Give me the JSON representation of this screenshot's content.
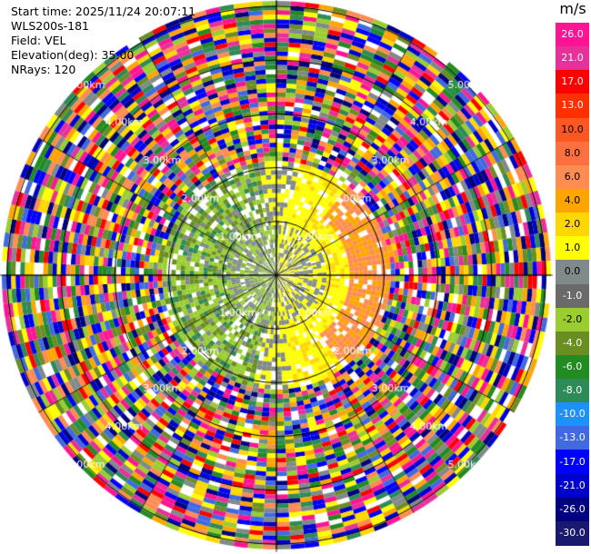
{
  "info": {
    "start_time": "Start time: 2025/11/24 20:07:11",
    "device": "WLS200s-181",
    "field": "Field: VEL",
    "elevation": "Elevation(deg): 35.00",
    "nrays": "NRays: 120"
  },
  "chart_data": {
    "type": "heatmap",
    "projection": "polar-ppi",
    "field": "VEL",
    "elevation_deg": 35.0,
    "nrays": 120,
    "range_rings_km": [
      1.0,
      2.0,
      3.0,
      4.0,
      5.0
    ],
    "ring_labels": [
      "1.00km",
      "2.00km",
      "3.00km",
      "4.00km",
      "5.00km"
    ],
    "colorbar": {
      "unit": "m/s",
      "ticks": [
        "26.0",
        "21.0",
        "17.0",
        "13.0",
        "10.0",
        "8.0",
        "6.0",
        "4.0",
        "2.0",
        "1.0",
        "0.0",
        "-1.0",
        "-2.0",
        "-4.0",
        "-6.0",
        "-8.0",
        "-10.0",
        "-13.0",
        "-17.0",
        "-21.0",
        "-26.0",
        "-30.0"
      ],
      "colors": [
        "#ff1493",
        "#e8309a",
        "#ff0000",
        "#ff3000",
        "#ff5722",
        "#ff7040",
        "#ff8c50",
        "#ffa500",
        "#ffd700",
        "#ffff00",
        "#808a8a",
        "#6a6a6a",
        "#9acd32",
        "#6b8e23",
        "#228b22",
        "#2e8b57",
        "#1e90ff",
        "#4169e1",
        "#0000ff",
        "#0000cd",
        "#000080",
        "#191970"
      ]
    }
  }
}
